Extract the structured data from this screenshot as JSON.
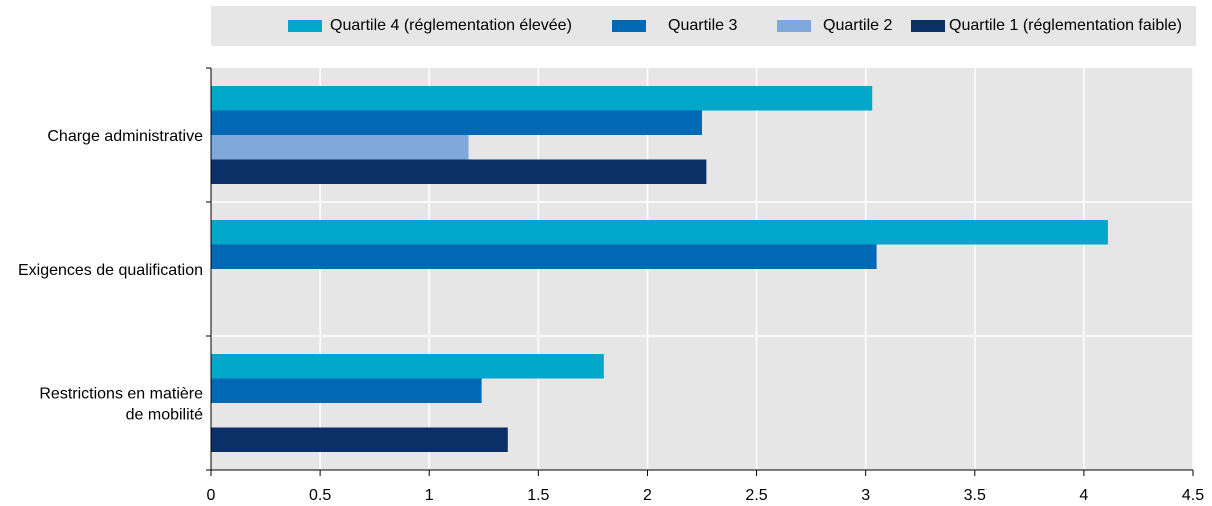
{
  "chart_data": {
    "type": "bar",
    "orientation": "horizontal",
    "categories": [
      [
        "Charge administrative"
      ],
      [
        "Exigences de qualification"
      ],
      [
        "Restrictions en matière",
        "de mobilité"
      ]
    ],
    "series": [
      {
        "name": "Quartile 4 (réglementation élevée)",
        "color": "#00a7c9",
        "values": [
          3.03,
          4.11,
          1.8
        ]
      },
      {
        "name": "Quartile 3",
        "color": "#0068b4",
        "values": [
          2.25,
          3.05,
          1.24
        ]
      },
      {
        "name": "Quartile 2",
        "color": "#80a9db",
        "values": [
          1.18,
          null,
          null
        ]
      },
      {
        "name": "Quartile 1 (réglementation faible)",
        "color": "#0b2f66",
        "values": [
          2.27,
          null,
          1.36
        ]
      }
    ],
    "xticks": [
      "0",
      "0.5",
      "1",
      "1.5",
      "2",
      "2.5",
      "3",
      "3.5",
      "4",
      "4.5"
    ],
    "xlim": [
      0,
      4.5
    ],
    "grid": true,
    "legend_position": "top"
  }
}
